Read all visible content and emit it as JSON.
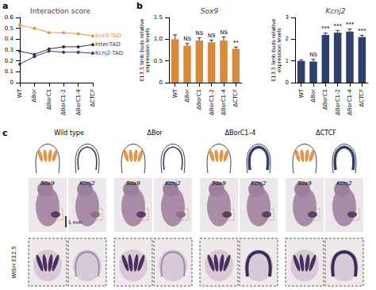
{
  "chart_data": [
    {
      "type": "line",
      "panel": "a",
      "title": "Interaction score",
      "categories": [
        "WT",
        "ΔBor",
        "ΔBorC1",
        "ΔBorC1-2",
        "ΔBorC1-4",
        "ΔCTCF"
      ],
      "series": [
        {
          "name": "Sox9-TAD",
          "color": "#e39447",
          "values": [
            0.53,
            0.5,
            0.46,
            0.46,
            0.45,
            0.43
          ]
        },
        {
          "name": "Inter-TAD",
          "color": "#333333",
          "values": [
            0.29,
            0.26,
            0.31,
            0.33,
            0.33,
            0.35
          ]
        },
        {
          "name": "Kcnj2-TAD",
          "color": "#2f3f6e",
          "values": [
            0.17,
            0.24,
            0.29,
            0.28,
            0.28,
            0.27
          ]
        }
      ],
      "ylim": [
        0,
        0.6
      ],
      "yticks": [
        0,
        0.1,
        0.2,
        0.3,
        0.4,
        0.5,
        0.6
      ],
      "marker": "circle",
      "grid": false
    },
    {
      "type": "bar",
      "panel": "b",
      "title": "Sox9",
      "ylabel": "E13.5 limb buds relative\nexpression levels",
      "categories": [
        "WT",
        "ΔBor",
        "ΔBorC1",
        "ΔBorC1-2",
        "ΔBorC1-4",
        "ΔCTCF"
      ],
      "values": [
        1.0,
        0.85,
        0.97,
        0.93,
        0.97,
        0.78
      ],
      "errors": [
        0.1,
        0.05,
        0.06,
        0.05,
        0.08,
        0.04
      ],
      "annotations": [
        null,
        "NS",
        "NS",
        "NS",
        "NS",
        "**"
      ],
      "color": "#d88a3a",
      "ylim": [
        0,
        1.5
      ],
      "yticks": [
        0,
        0.5,
        {
          "value": 1,
          "label": "1.0"
        },
        1.5
      ],
      "grid": false
    },
    {
      "type": "bar",
      "title": "Kcnj2",
      "ylabel": "E13.5 limb buds relative\nexpression levels",
      "categories": [
        "WT",
        "ΔBor",
        "ΔBorC1",
        "ΔBorC1-2",
        "ΔBorC1-4",
        "ΔCTCF"
      ],
      "values": [
        1.0,
        0.97,
        2.2,
        2.3,
        2.35,
        2.1
      ],
      "errors": [
        0.05,
        0.1,
        0.08,
        0.1,
        0.12,
        0.08
      ],
      "annotations": [
        null,
        "NS",
        "***",
        "***",
        "***",
        "***"
      ],
      "color": "#2f3f6e",
      "ylim": [
        0,
        3
      ],
      "yticks": [
        0,
        1,
        2,
        3
      ],
      "grid": false
    }
  ],
  "panel_c": {
    "label": "c",
    "columns": [
      {
        "title": "Wild type",
        "genes": [
          "Sox9",
          "Kcnj2"
        ]
      },
      {
        "title": "ΔBor",
        "genes": [
          "Sox9",
          "Kcnj2"
        ]
      },
      {
        "title": "ΔBorC1–4",
        "genes": [
          "Sox9",
          "Kcnj2"
        ]
      },
      {
        "title": "ΔCTCF",
        "genes": [
          "Sox9",
          "Kcnj2"
        ]
      }
    ],
    "method": "WISH E12.5",
    "scale_bar": "1 mm"
  }
}
